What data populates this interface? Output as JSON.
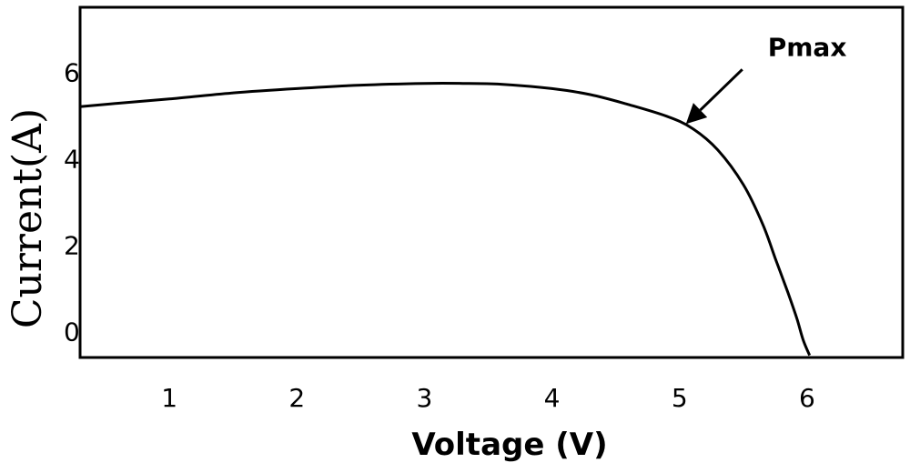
{
  "chart_data": {
    "type": "line",
    "xlabel": "Voltage (V)",
    "ylabel": "Current(A)",
    "xlim": [
      0.3,
      6.75
    ],
    "ylim": [
      -0.6,
      7.5
    ],
    "x_ticks": [
      1,
      2,
      3,
      4,
      5,
      6
    ],
    "y_ticks": [
      0,
      2,
      4,
      6
    ],
    "grid": false,
    "series": [
      {
        "x": [
          0.3,
          0.6,
          1.0,
          1.5,
          2.0,
          2.5,
          3.0,
          3.3,
          3.6,
          4.0,
          4.3,
          4.6,
          4.9,
          5.1,
          5.3,
          5.5,
          5.65,
          5.75,
          5.85,
          5.92,
          5.97,
          6.02
        ],
        "y": [
          5.2,
          5.28,
          5.38,
          5.52,
          5.62,
          5.7,
          5.74,
          5.74,
          5.72,
          5.62,
          5.48,
          5.25,
          4.98,
          4.7,
          4.2,
          3.4,
          2.5,
          1.7,
          0.9,
          0.3,
          -0.2,
          -0.55
        ]
      }
    ],
    "annotations": [
      {
        "text": "Pmax",
        "point": [
          5.05,
          4.8
        ],
        "arrow": true
      }
    ]
  }
}
